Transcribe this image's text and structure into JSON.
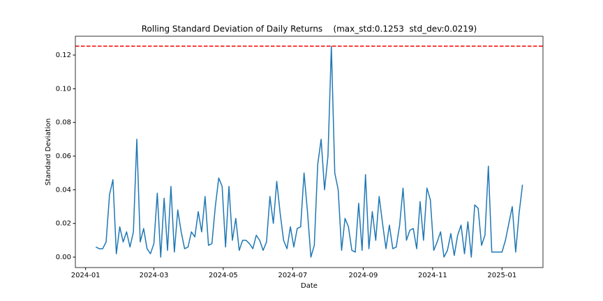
{
  "chart_data": {
    "type": "line",
    "title": "Rolling Standard Deviation of Daily Returns    (max_std:0.1253  std_dev:0.0219)",
    "x_label": "Date",
    "y_label": "Standard Deviation",
    "x": [
      "2024-01-10",
      "2024-01-13",
      "2024-01-16",
      "2024-01-19",
      "2024-01-22",
      "2024-01-25",
      "2024-01-28",
      "2024-01-31",
      "2024-02-03",
      "2024-02-06",
      "2024-02-09",
      "2024-02-12",
      "2024-02-15",
      "2024-02-18",
      "2024-02-21",
      "2024-02-24",
      "2024-02-27",
      "2024-03-01",
      "2024-03-04",
      "2024-03-07",
      "2024-03-10",
      "2024-03-13",
      "2024-03-16",
      "2024-03-19",
      "2024-03-22",
      "2024-03-25",
      "2024-03-28",
      "2024-03-31",
      "2024-04-03",
      "2024-04-06",
      "2024-04-09",
      "2024-04-12",
      "2024-04-15",
      "2024-04-18",
      "2024-04-21",
      "2024-04-24",
      "2024-04-27",
      "2024-04-30",
      "2024-05-03",
      "2024-05-06",
      "2024-05-09",
      "2024-05-12",
      "2024-05-15",
      "2024-05-18",
      "2024-05-21",
      "2024-05-24",
      "2024-05-27",
      "2024-05-30",
      "2024-06-02",
      "2024-06-05",
      "2024-06-08",
      "2024-06-11",
      "2024-06-14",
      "2024-06-17",
      "2024-06-20",
      "2024-06-23",
      "2024-06-26",
      "2024-06-29",
      "2024-07-02",
      "2024-07-05",
      "2024-07-08",
      "2024-07-11",
      "2024-07-14",
      "2024-07-17",
      "2024-07-20",
      "2024-07-23",
      "2024-07-26",
      "2024-07-29",
      "2024-08-01",
      "2024-08-04",
      "2024-08-07",
      "2024-08-10",
      "2024-08-13",
      "2024-08-16",
      "2024-08-19",
      "2024-08-22",
      "2024-08-25",
      "2024-08-28",
      "2024-08-31",
      "2024-09-03",
      "2024-09-06",
      "2024-09-09",
      "2024-09-12",
      "2024-09-15",
      "2024-09-18",
      "2024-09-21",
      "2024-09-24",
      "2024-09-27",
      "2024-09-30",
      "2024-10-03",
      "2024-10-06",
      "2024-10-09",
      "2024-10-12",
      "2024-10-15",
      "2024-10-18",
      "2024-10-21",
      "2024-10-24",
      "2024-10-27",
      "2024-10-30",
      "2024-11-02",
      "2024-11-05",
      "2024-11-08",
      "2024-11-11",
      "2024-11-14",
      "2024-11-17",
      "2024-11-20",
      "2024-11-23",
      "2024-11-26",
      "2024-11-29",
      "2024-12-02",
      "2024-12-05",
      "2024-12-08",
      "2024-12-11",
      "2024-12-14",
      "2024-12-17",
      "2024-12-20",
      "2024-12-23",
      "2024-12-26",
      "2024-12-29",
      "2025-01-01",
      "2025-01-04",
      "2025-01-07",
      "2025-01-10",
      "2025-01-13",
      "2025-01-16",
      "2025-01-19"
    ],
    "series": [
      {
        "color": "#1f77b4",
        "values": [
          0.006,
          0.005,
          0.005,
          0.009,
          0.037,
          0.046,
          0.002,
          0.018,
          0.009,
          0.015,
          0.006,
          0.015,
          0.07,
          0.009,
          0.017,
          0.005,
          0.002,
          0.008,
          0.038,
          0.0,
          0.035,
          0.004,
          0.042,
          0.003,
          0.028,
          0.015,
          0.005,
          0.006,
          0.015,
          0.012,
          0.027,
          0.015,
          0.036,
          0.007,
          0.008,
          0.03,
          0.047,
          0.042,
          0.006,
          0.042,
          0.01,
          0.023,
          0.004,
          0.01,
          0.01,
          0.008,
          0.005,
          0.013,
          0.01,
          0.004,
          0.009,
          0.036,
          0.02,
          0.045,
          0.026,
          0.01,
          0.005,
          0.018,
          0.006,
          0.017,
          0.018,
          0.05,
          0.027,
          0.0,
          0.007,
          0.055,
          0.07,
          0.04,
          0.06,
          0.1253,
          0.05,
          0.04,
          0.004,
          0.023,
          0.018,
          0.004,
          0.003,
          0.032,
          0.004,
          0.049,
          0.005,
          0.027,
          0.01,
          0.036,
          0.02,
          0.005,
          0.019,
          0.005,
          0.006,
          0.019,
          0.041,
          0.01,
          0.016,
          0.017,
          0.005,
          0.033,
          0.01,
          0.041,
          0.034,
          0.004,
          0.009,
          0.015,
          0.0,
          0.004,
          0.014,
          0.001,
          0.013,
          0.019,
          0.002,
          0.021,
          0.0,
          0.031,
          0.029,
          0.007,
          0.013,
          0.054,
          0.003,
          0.003,
          0.003,
          0.003,
          0.01,
          0.02,
          0.03,
          0.003,
          0.026,
          0.043
        ]
      }
    ],
    "reference_line": {
      "value": 0.1253,
      "color": "#ff0000",
      "style": "dashed"
    },
    "xlim": [
      "2023-12-23",
      "2025-02-06"
    ],
    "xticks": [
      {
        "value": "2024-01-01",
        "label": "2024-01"
      },
      {
        "value": "2024-03-01",
        "label": "2024-03"
      },
      {
        "value": "2024-05-01",
        "label": "2024-05"
      },
      {
        "value": "2024-07-01",
        "label": "2024-07"
      },
      {
        "value": "2024-09-01",
        "label": "2024-09"
      },
      {
        "value": "2024-11-01",
        "label": "2024-11"
      },
      {
        "value": "2025-01-01",
        "label": "2025-01"
      }
    ],
    "ylim": [
      -0.0062,
      0.1312
    ],
    "yticks": [
      {
        "value": 0,
        "label": "0.00"
      },
      {
        "value": 0.02,
        "label": "0.02"
      },
      {
        "value": 0.04,
        "label": "0.04"
      },
      {
        "value": 0.06,
        "label": "0.06"
      },
      {
        "value": 0.08,
        "label": "0.08"
      },
      {
        "value": 0.1,
        "label": "0.10"
      },
      {
        "value": 0.12,
        "label": "0.12"
      }
    ],
    "grid": false
  }
}
